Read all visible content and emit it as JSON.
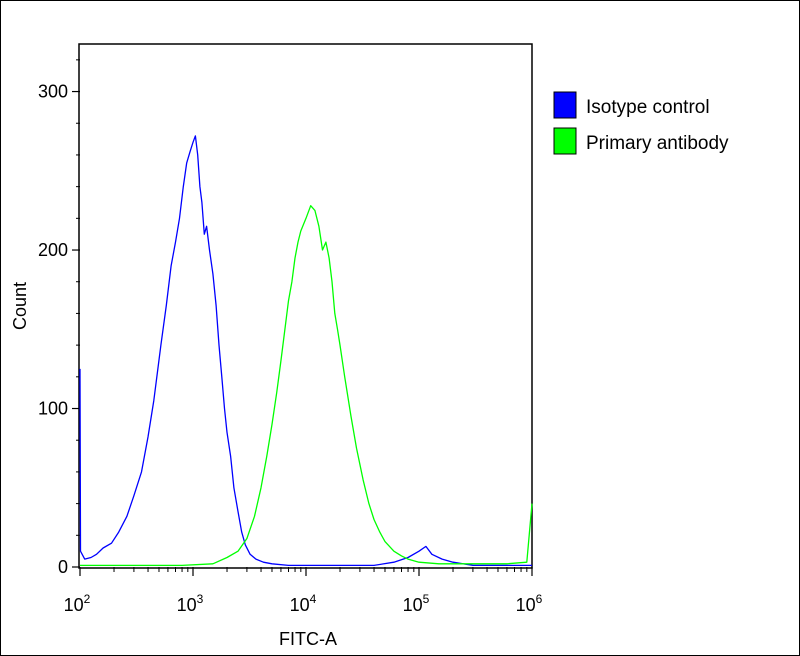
{
  "chart_data": {
    "type": "line",
    "title": "",
    "xlabel": "FITC-A",
    "ylabel": "Count",
    "x_scale": "log",
    "xlim": [
      100,
      1000000
    ],
    "ylim": [
      0,
      330
    ],
    "x_ticks": [
      {
        "value": 100,
        "base": "10",
        "exp": "2"
      },
      {
        "value": 1000,
        "base": "10",
        "exp": "3"
      },
      {
        "value": 10000,
        "base": "10",
        "exp": "4"
      },
      {
        "value": 100000,
        "base": "10",
        "exp": "5"
      },
      {
        "value": 1000000,
        "base": "10",
        "exp": "6"
      }
    ],
    "y_ticks": [
      {
        "value": 0,
        "label": "0"
      },
      {
        "value": 100,
        "label": "100"
      },
      {
        "value": 200,
        "label": "200"
      },
      {
        "value": 300,
        "label": "300"
      }
    ],
    "grid": false,
    "legend_position": "right",
    "series": [
      {
        "name": "Isotype control",
        "color": "#0000ff",
        "points": [
          [
            100,
            125
          ],
          [
            101,
            10
          ],
          [
            110,
            5
          ],
          [
            125,
            6
          ],
          [
            140,
            8
          ],
          [
            160,
            12
          ],
          [
            190,
            15
          ],
          [
            220,
            22
          ],
          [
            260,
            32
          ],
          [
            300,
            45
          ],
          [
            350,
            60
          ],
          [
            400,
            82
          ],
          [
            450,
            105
          ],
          [
            520,
            140
          ],
          [
            580,
            165
          ],
          [
            640,
            190
          ],
          [
            700,
            205
          ],
          [
            760,
            220
          ],
          [
            820,
            240
          ],
          [
            880,
            255
          ],
          [
            940,
            262
          ],
          [
            1000,
            268
          ],
          [
            1050,
            272
          ],
          [
            1100,
            260
          ],
          [
            1150,
            240
          ],
          [
            1200,
            230
          ],
          [
            1260,
            210
          ],
          [
            1320,
            215
          ],
          [
            1400,
            200
          ],
          [
            1500,
            185
          ],
          [
            1600,
            165
          ],
          [
            1700,
            140
          ],
          [
            1800,
            120
          ],
          [
            1900,
            100
          ],
          [
            2000,
            85
          ],
          [
            2150,
            70
          ],
          [
            2300,
            50
          ],
          [
            2500,
            35
          ],
          [
            2700,
            22
          ],
          [
            2900,
            14
          ],
          [
            3200,
            8
          ],
          [
            3600,
            5
          ],
          [
            4200,
            3
          ],
          [
            5000,
            2
          ],
          [
            7000,
            1
          ],
          [
            10000,
            1
          ],
          [
            20000,
            1
          ],
          [
            40000,
            1
          ],
          [
            60000,
            3
          ],
          [
            80000,
            6
          ],
          [
            100000,
            10
          ],
          [
            115000,
            13
          ],
          [
            130000,
            8
          ],
          [
            160000,
            5
          ],
          [
            200000,
            3
          ],
          [
            300000,
            1
          ],
          [
            1000000,
            1
          ]
        ]
      },
      {
        "name": "Primary antibody",
        "color": "#00ff00",
        "points": [
          [
            100,
            1
          ],
          [
            300,
            1
          ],
          [
            800,
            1
          ],
          [
            1500,
            2
          ],
          [
            2000,
            6
          ],
          [
            2500,
            10
          ],
          [
            3000,
            18
          ],
          [
            3500,
            32
          ],
          [
            4000,
            50
          ],
          [
            4500,
            70
          ],
          [
            5000,
            90
          ],
          [
            5500,
            110
          ],
          [
            6000,
            130
          ],
          [
            6500,
            150
          ],
          [
            7000,
            168
          ],
          [
            7500,
            180
          ],
          [
            8000,
            195
          ],
          [
            8500,
            205
          ],
          [
            9000,
            212
          ],
          [
            10000,
            220
          ],
          [
            11000,
            228
          ],
          [
            12000,
            225
          ],
          [
            13000,
            215
          ],
          [
            14000,
            200
          ],
          [
            15000,
            205
          ],
          [
            16000,
            195
          ],
          [
            17000,
            180
          ],
          [
            18000,
            160
          ],
          [
            19000,
            150
          ],
          [
            20000,
            140
          ],
          [
            22000,
            120
          ],
          [
            25000,
            95
          ],
          [
            28000,
            75
          ],
          [
            32000,
            55
          ],
          [
            36000,
            40
          ],
          [
            40000,
            30
          ],
          [
            45000,
            22
          ],
          [
            50000,
            16
          ],
          [
            60000,
            10
          ],
          [
            70000,
            7
          ],
          [
            80000,
            5
          ],
          [
            100000,
            3
          ],
          [
            150000,
            2
          ],
          [
            300000,
            2
          ],
          [
            600000,
            2
          ],
          [
            900000,
            3
          ],
          [
            1000000,
            40
          ]
        ]
      }
    ]
  }
}
